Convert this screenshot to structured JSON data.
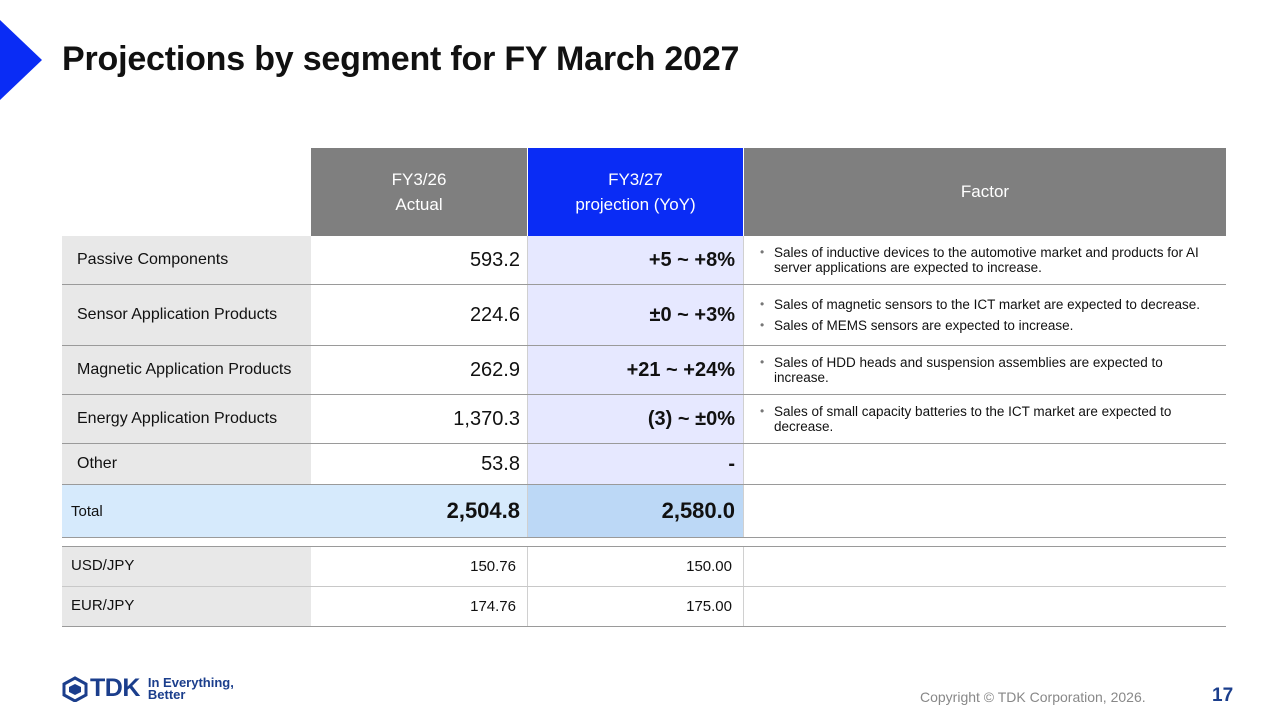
{
  "title": "Projections by segment for FY March 2027",
  "colors": {
    "accent": "#0a2cf5",
    "header_gray": "#7f7f7f",
    "projection_fill": "#e6e8ff",
    "total_fill": "#d6eafc",
    "brand": "#1b3e8c"
  },
  "table": {
    "headers": {
      "actual_line1": "FY3/26",
      "actual_line2": "Actual",
      "projection_line1": "FY3/27",
      "projection_line2": "projection (YoY)",
      "factor": "Factor"
    },
    "rows": [
      {
        "label": "Passive Components",
        "actual": "593.2",
        "projection": "+5 ~ +8%",
        "factors": [
          "Sales of inductive devices to the automotive market and products for AI server applications are expected to increase."
        ]
      },
      {
        "label": "Sensor Application Products",
        "actual": "224.6",
        "projection": "±0 ~ +3%",
        "factors": [
          "Sales of magnetic sensors to the ICT market are expected to decrease.",
          "Sales of MEMS sensors are expected to increase."
        ]
      },
      {
        "label": "Magnetic Application Products",
        "actual": "262.9",
        "projection": "+21 ~ +24%",
        "factors": [
          "Sales of HDD heads and suspension assemblies are expected to increase."
        ]
      },
      {
        "label": "Energy Application Products",
        "actual": "1,370.3",
        "projection": "(3) ~ ±0%",
        "factors": [
          "Sales of small capacity batteries to the ICT market are expected to decrease."
        ]
      },
      {
        "label": "Other",
        "actual": "53.8",
        "projection": "-",
        "factors": []
      }
    ],
    "total": {
      "label": "Total",
      "actual": "2,504.8",
      "projection": "2,580.0"
    }
  },
  "fx": [
    {
      "label": "USD/JPY",
      "actual": "150.76",
      "projection": "150.00"
    },
    {
      "label": "EUR/JPY",
      "actual": "174.76",
      "projection": "175.00"
    }
  ],
  "footer": {
    "logo_text": "TDK",
    "tagline_line1": "In Everything,",
    "tagline_line2": "Better",
    "copyright": "Copyright  © TDK Corporation, 2026.",
    "page_number": "17"
  }
}
